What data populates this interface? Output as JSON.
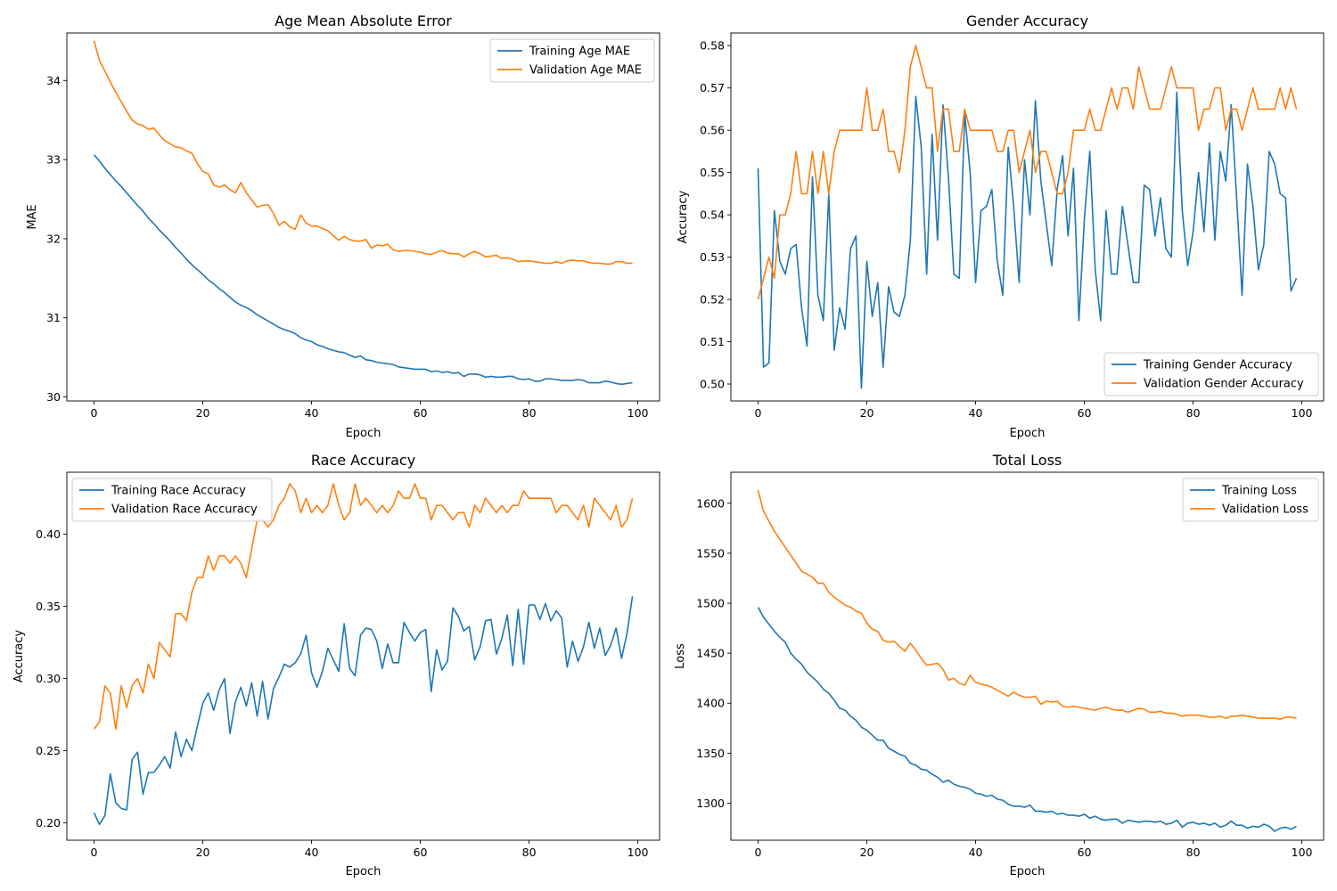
{
  "colors": {
    "training": "#1f77b4",
    "validation": "#ff7f0e"
  },
  "chart_data": [
    {
      "type": "line",
      "title": "Age Mean Absolute Error",
      "xlabel": "Epoch",
      "ylabel": "MAE",
      "xlim": [
        0,
        99
      ],
      "ylim": [
        29.95,
        34.6
      ],
      "xticks": [
        0,
        20,
        40,
        60,
        80,
        100
      ],
      "yticks": [
        30,
        31,
        32,
        33,
        34
      ],
      "legend_position": "upper-right",
      "series": [
        {
          "name": "Training Age MAE",
          "color": "#1f77b4",
          "values": [
            33.06,
            32.98,
            32.89,
            32.81,
            32.73,
            32.66,
            32.58,
            32.5,
            32.42,
            32.35,
            32.26,
            32.19,
            32.11,
            32.04,
            31.97,
            31.89,
            31.82,
            31.74,
            31.67,
            31.61,
            31.55,
            31.48,
            31.43,
            31.37,
            31.32,
            31.26,
            31.2,
            31.16,
            31.13,
            31.09,
            31.04,
            31.0,
            30.96,
            30.92,
            30.88,
            30.85,
            30.83,
            30.8,
            30.75,
            30.72,
            30.7,
            30.66,
            30.64,
            30.61,
            30.59,
            30.57,
            30.56,
            30.53,
            30.5,
            30.52,
            30.47,
            30.46,
            30.44,
            30.43,
            30.42,
            30.41,
            30.38,
            30.37,
            30.36,
            30.35,
            30.35,
            30.35,
            30.32,
            30.33,
            30.31,
            30.32,
            30.3,
            30.31,
            30.26,
            30.29,
            30.29,
            30.28,
            30.25,
            30.26,
            30.25,
            30.25,
            30.26,
            30.26,
            30.23,
            30.22,
            30.23,
            30.2,
            30.2,
            30.23,
            30.23,
            30.22,
            30.21,
            30.21,
            30.21,
            30.22,
            30.21,
            30.18,
            30.18,
            30.18,
            30.2,
            30.19,
            30.17,
            30.16,
            30.17,
            30.18
          ]
        },
        {
          "name": "Validation Age MAE",
          "color": "#ff7f0e",
          "values": [
            34.5,
            34.25,
            34.12,
            33.98,
            33.85,
            33.73,
            33.61,
            33.5,
            33.45,
            33.43,
            33.38,
            33.4,
            33.31,
            33.24,
            33.2,
            33.16,
            33.15,
            33.11,
            33.08,
            32.95,
            32.85,
            32.82,
            32.68,
            32.65,
            32.68,
            32.62,
            32.58,
            32.71,
            32.58,
            32.49,
            32.4,
            32.42,
            32.43,
            32.32,
            32.17,
            32.22,
            32.15,
            32.12,
            32.3,
            32.2,
            32.16,
            32.16,
            32.13,
            32.1,
            32.04,
            31.98,
            32.03,
            31.99,
            31.97,
            31.97,
            31.99,
            31.88,
            31.92,
            31.91,
            31.93,
            31.86,
            31.84,
            31.85,
            31.85,
            31.84,
            31.83,
            31.81,
            31.8,
            31.83,
            31.85,
            31.82,
            31.81,
            31.81,
            31.77,
            31.81,
            31.84,
            31.81,
            31.77,
            31.78,
            31.79,
            31.75,
            31.76,
            31.74,
            31.71,
            31.72,
            31.72,
            31.71,
            31.7,
            31.69,
            31.69,
            31.71,
            31.69,
            31.72,
            31.73,
            31.72,
            31.72,
            31.7,
            31.69,
            31.69,
            31.68,
            31.68,
            31.71,
            31.71,
            31.69,
            31.69
          ]
        }
      ]
    },
    {
      "type": "line",
      "title": "Gender Accuracy",
      "xlabel": "Epoch",
      "ylabel": "Accuracy",
      "xlim": [
        0,
        99
      ],
      "ylim": [
        0.496,
        0.583
      ],
      "xticks": [
        0,
        20,
        40,
        60,
        80,
        100
      ],
      "yticks": [
        0.5,
        0.51,
        0.52,
        0.53,
        0.54,
        0.55,
        0.56,
        0.57,
        0.58
      ],
      "ytick_labels": [
        "0.50",
        "0.51",
        "0.52",
        "0.53",
        "0.54",
        "0.55",
        "0.56",
        "0.57",
        "0.58"
      ],
      "legend_position": "lower-right",
      "series": [
        {
          "name": "Training Gender Accuracy",
          "color": "#1f77b4",
          "values": [
            0.551,
            0.504,
            0.505,
            0.541,
            0.529,
            0.526,
            0.532,
            0.533,
            0.518,
            0.509,
            0.549,
            0.521,
            0.515,
            0.545,
            0.508,
            0.518,
            0.513,
            0.532,
            0.535,
            0.499,
            0.529,
            0.516,
            0.524,
            0.504,
            0.523,
            0.517,
            0.516,
            0.521,
            0.534,
            0.568,
            0.556,
            0.526,
            0.559,
            0.534,
            0.566,
            0.549,
            0.526,
            0.525,
            0.564,
            0.55,
            0.524,
            0.541,
            0.542,
            0.546,
            0.529,
            0.521,
            0.556,
            0.542,
            0.524,
            0.553,
            0.54,
            0.567,
            0.548,
            0.538,
            0.528,
            0.546,
            0.554,
            0.535,
            0.551,
            0.515,
            0.539,
            0.555,
            0.527,
            0.515,
            0.541,
            0.526,
            0.526,
            0.542,
            0.533,
            0.524,
            0.524,
            0.547,
            0.546,
            0.535,
            0.544,
            0.532,
            0.53,
            0.569,
            0.541,
            0.528,
            0.536,
            0.55,
            0.536,
            0.557,
            0.534,
            0.555,
            0.548,
            0.566,
            0.544,
            0.521,
            0.552,
            0.542,
            0.527,
            0.533,
            0.555,
            0.552,
            0.545,
            0.544,
            0.522,
            0.525
          ]
        },
        {
          "name": "Validation Gender Accuracy",
          "color": "#ff7f0e",
          "values": [
            0.52,
            0.525,
            0.53,
            0.525,
            0.54,
            0.54,
            0.545,
            0.555,
            0.545,
            0.545,
            0.555,
            0.545,
            0.555,
            0.545,
            0.555,
            0.56,
            0.56,
            0.56,
            0.56,
            0.56,
            0.57,
            0.56,
            0.56,
            0.565,
            0.555,
            0.555,
            0.55,
            0.56,
            0.575,
            0.58,
            0.575,
            0.57,
            0.57,
            0.555,
            0.565,
            0.565,
            0.555,
            0.555,
            0.565,
            0.56,
            0.56,
            0.56,
            0.56,
            0.56,
            0.555,
            0.555,
            0.56,
            0.56,
            0.55,
            0.555,
            0.56,
            0.55,
            0.555,
            0.555,
            0.55,
            0.545,
            0.545,
            0.55,
            0.56,
            0.56,
            0.56,
            0.565,
            0.56,
            0.56,
            0.565,
            0.57,
            0.565,
            0.57,
            0.57,
            0.565,
            0.575,
            0.57,
            0.565,
            0.565,
            0.565,
            0.57,
            0.575,
            0.57,
            0.57,
            0.57,
            0.57,
            0.56,
            0.565,
            0.565,
            0.57,
            0.57,
            0.56,
            0.565,
            0.565,
            0.56,
            0.565,
            0.57,
            0.565,
            0.565,
            0.565,
            0.565,
            0.57,
            0.565,
            0.57,
            0.565
          ]
        }
      ]
    },
    {
      "type": "line",
      "title": "Race Accuracy",
      "xlabel": "Epoch",
      "ylabel": "Accuracy",
      "xlim": [
        0,
        99
      ],
      "ylim": [
        0.188,
        0.443
      ],
      "xticks": [
        0,
        20,
        40,
        60,
        80,
        100
      ],
      "yticks": [
        0.2,
        0.25,
        0.3,
        0.35,
        0.4
      ],
      "ytick_labels": [
        "0.20",
        "0.25",
        "0.30",
        "0.35",
        "0.40"
      ],
      "legend_position": "upper-left",
      "series": [
        {
          "name": "Training Race Accuracy",
          "color": "#1f77b4",
          "values": [
            0.207,
            0.199,
            0.205,
            0.234,
            0.214,
            0.21,
            0.209,
            0.244,
            0.249,
            0.22,
            0.235,
            0.235,
            0.24,
            0.246,
            0.238,
            0.263,
            0.246,
            0.258,
            0.25,
            0.267,
            0.283,
            0.29,
            0.278,
            0.292,
            0.3,
            0.262,
            0.284,
            0.294,
            0.281,
            0.297,
            0.274,
            0.298,
            0.272,
            0.293,
            0.301,
            0.31,
            0.308,
            0.311,
            0.317,
            0.33,
            0.304,
            0.294,
            0.305,
            0.321,
            0.313,
            0.305,
            0.338,
            0.307,
            0.302,
            0.33,
            0.335,
            0.334,
            0.326,
            0.307,
            0.324,
            0.311,
            0.311,
            0.339,
            0.332,
            0.326,
            0.332,
            0.334,
            0.291,
            0.32,
            0.306,
            0.312,
            0.349,
            0.343,
            0.333,
            0.336,
            0.313,
            0.322,
            0.34,
            0.341,
            0.317,
            0.328,
            0.344,
            0.309,
            0.348,
            0.31,
            0.351,
            0.351,
            0.341,
            0.352,
            0.34,
            0.347,
            0.342,
            0.308,
            0.326,
            0.312,
            0.322,
            0.339,
            0.321,
            0.335,
            0.316,
            0.323,
            0.335,
            0.314,
            0.331,
            0.357
          ]
        },
        {
          "name": "Validation Race Accuracy",
          "color": "#ff7f0e",
          "values": [
            0.265,
            0.27,
            0.295,
            0.29,
            0.265,
            0.295,
            0.28,
            0.295,
            0.3,
            0.29,
            0.31,
            0.3,
            0.325,
            0.32,
            0.315,
            0.345,
            0.345,
            0.34,
            0.36,
            0.37,
            0.37,
            0.385,
            0.375,
            0.385,
            0.385,
            0.38,
            0.385,
            0.38,
            0.37,
            0.39,
            0.41,
            0.41,
            0.405,
            0.41,
            0.42,
            0.425,
            0.435,
            0.43,
            0.415,
            0.425,
            0.415,
            0.42,
            0.415,
            0.42,
            0.435,
            0.42,
            0.41,
            0.415,
            0.435,
            0.42,
            0.425,
            0.42,
            0.415,
            0.42,
            0.415,
            0.42,
            0.43,
            0.425,
            0.425,
            0.435,
            0.425,
            0.425,
            0.41,
            0.42,
            0.42,
            0.415,
            0.41,
            0.415,
            0.415,
            0.405,
            0.42,
            0.415,
            0.425,
            0.42,
            0.415,
            0.42,
            0.415,
            0.42,
            0.42,
            0.43,
            0.425,
            0.425,
            0.425,
            0.425,
            0.425,
            0.415,
            0.42,
            0.42,
            0.415,
            0.41,
            0.42,
            0.405,
            0.425,
            0.42,
            0.415,
            0.41,
            0.42,
            0.405,
            0.41,
            0.425
          ]
        }
      ]
    },
    {
      "type": "line",
      "title": "Total Loss",
      "xlabel": "Epoch",
      "ylabel": "Loss",
      "xlim": [
        0,
        99
      ],
      "ylim": [
        1263,
        1631
      ],
      "xticks": [
        0,
        20,
        40,
        60,
        80,
        100
      ],
      "yticks": [
        1300,
        1350,
        1400,
        1450,
        1500,
        1550,
        1600
      ],
      "legend_position": "upper-right",
      "series": [
        {
          "name": "Training Loss",
          "color": "#1f77b4",
          "values": [
            1496,
            1486,
            1479,
            1472,
            1466,
            1461,
            1450,
            1444,
            1439,
            1431,
            1426,
            1421,
            1414,
            1410,
            1403,
            1395,
            1393,
            1387,
            1383,
            1376,
            1373,
            1368,
            1363,
            1363,
            1355,
            1352,
            1349,
            1347,
            1340,
            1338,
            1334,
            1333,
            1329,
            1326,
            1321,
            1323,
            1319,
            1317,
            1316,
            1314,
            1310,
            1309,
            1307,
            1308,
            1304,
            1303,
            1299,
            1297,
            1297,
            1296,
            1298,
            1292,
            1292,
            1291,
            1292,
            1289,
            1290,
            1288,
            1288,
            1287,
            1289,
            1285,
            1287,
            1284,
            1283,
            1284,
            1284,
            1280,
            1283,
            1282,
            1281,
            1282,
            1282,
            1281,
            1282,
            1279,
            1280,
            1283,
            1276,
            1280,
            1281,
            1279,
            1280,
            1278,
            1280,
            1276,
            1278,
            1282,
            1278,
            1278,
            1275,
            1277,
            1276,
            1279,
            1277,
            1272,
            1275,
            1276,
            1274,
            1277
          ]
        },
        {
          "name": "Validation Loss",
          "color": "#ff7f0e",
          "values": [
            1613,
            1592,
            1582,
            1572,
            1564,
            1556,
            1548,
            1540,
            1532,
            1529,
            1526,
            1520,
            1520,
            1511,
            1506,
            1502,
            1498,
            1496,
            1492,
            1490,
            1480,
            1474,
            1472,
            1463,
            1461,
            1462,
            1457,
            1452,
            1460,
            1453,
            1445,
            1438,
            1439,
            1440,
            1434,
            1423,
            1425,
            1420,
            1418,
            1428,
            1421,
            1419,
            1418,
            1416,
            1413,
            1410,
            1407,
            1411,
            1408,
            1406,
            1406,
            1407,
            1399,
            1402,
            1401,
            1402,
            1397,
            1396,
            1397,
            1396,
            1395,
            1394,
            1393,
            1395,
            1396,
            1394,
            1393,
            1393,
            1391,
            1393,
            1395,
            1394,
            1391,
            1391,
            1392,
            1390,
            1390,
            1389,
            1387,
            1388,
            1388,
            1388,
            1387,
            1386,
            1386,
            1387,
            1385,
            1387,
            1387,
            1388,
            1387,
            1386,
            1385,
            1385,
            1385,
            1385,
            1384,
            1386,
            1386,
            1385
          ]
        }
      ]
    }
  ]
}
